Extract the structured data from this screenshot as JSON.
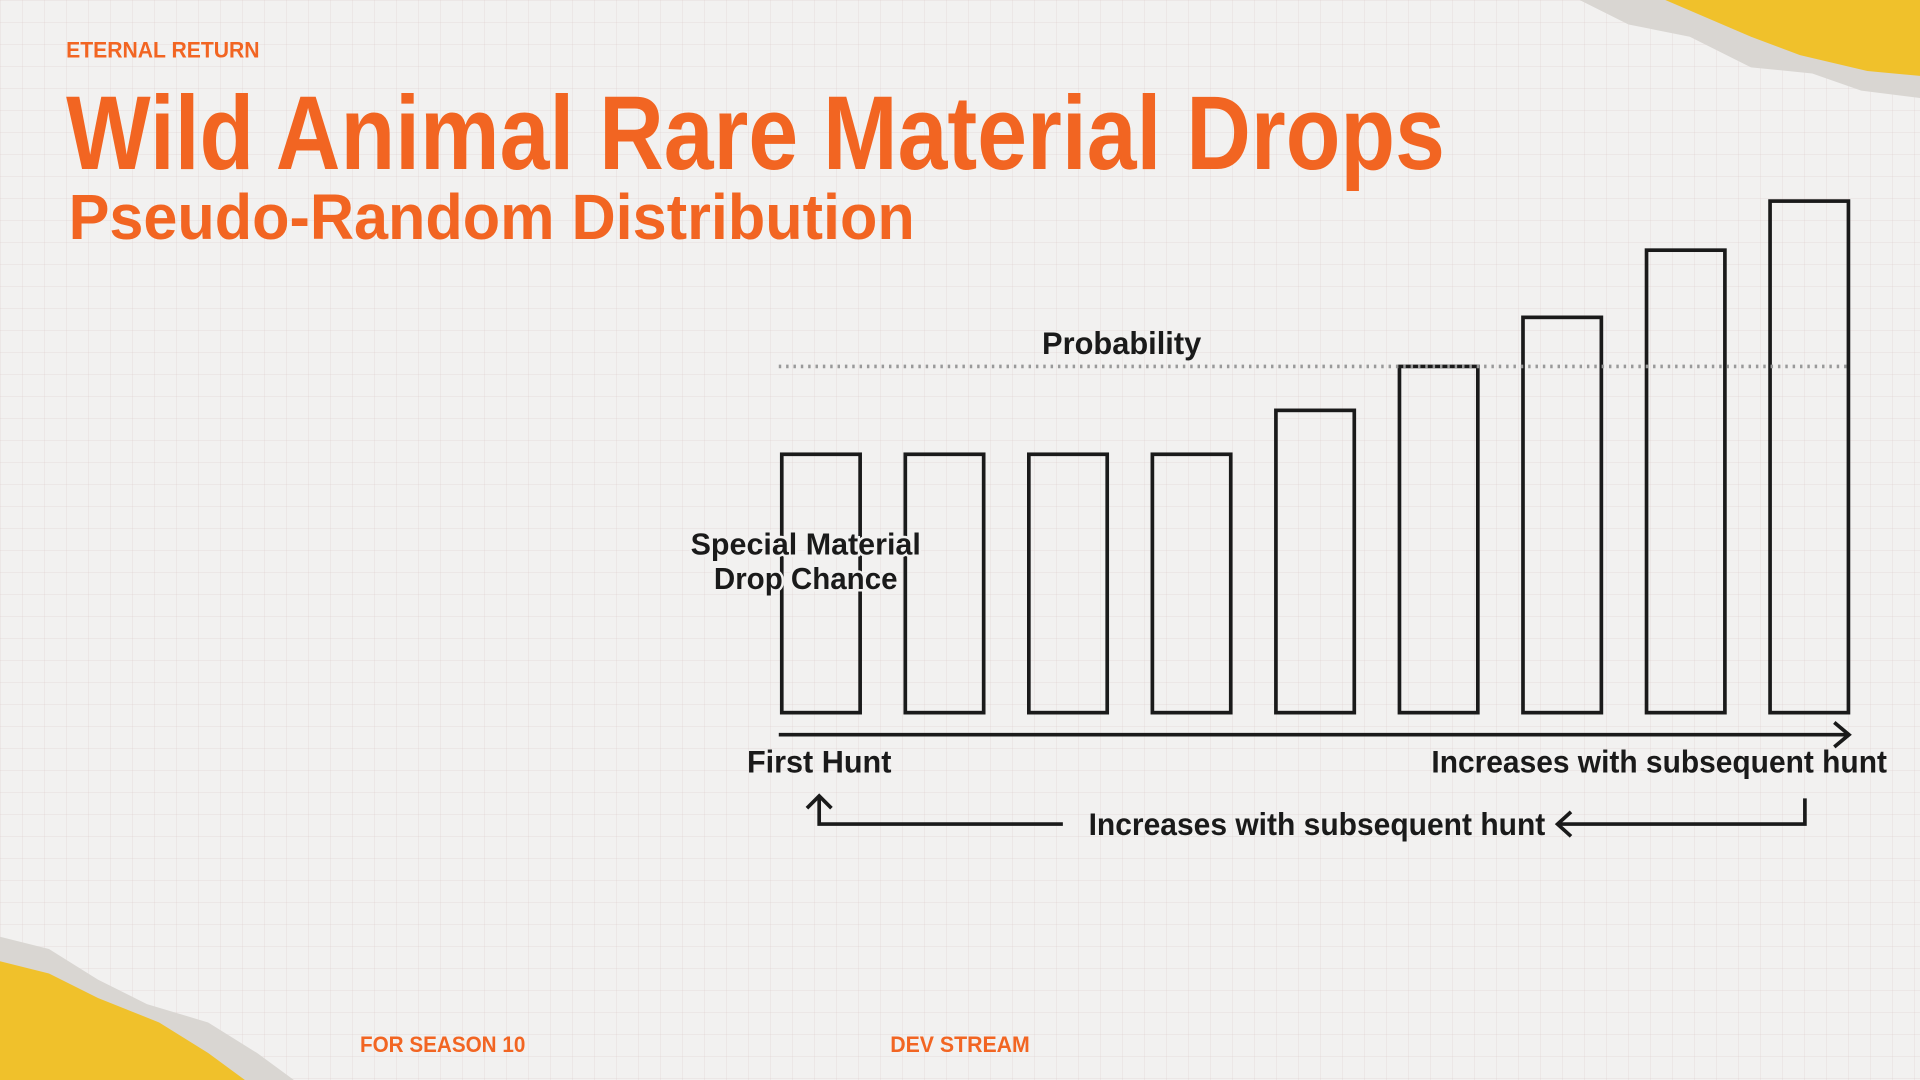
{
  "header": {
    "brand": "ETERNAL RETURN",
    "title": "Wild Animal Rare Material Drops",
    "subtitle": "Pseudo-Random Distribution"
  },
  "chart_data": {
    "type": "bar",
    "categories": [
      null,
      null,
      null,
      null,
      null,
      null,
      null,
      null,
      null
    ],
    "values": [
      1,
      1,
      1,
      1,
      1.17,
      1.34,
      1.53,
      1.79,
      1.98
    ],
    "ylim": [
      0,
      2
    ],
    "threshold": {
      "label": "Probability",
      "value": 1.34
    },
    "y_label": [
      "Special Material",
      "Drop Chance"
    ],
    "x_start_label": "First Hunt",
    "x_end_label": "Increases with subsequent hunt",
    "reset_label": "Increases with subsequent hunt"
  },
  "footer": {
    "left": "FOR SEASON 10",
    "right": "DEV STREAM"
  }
}
